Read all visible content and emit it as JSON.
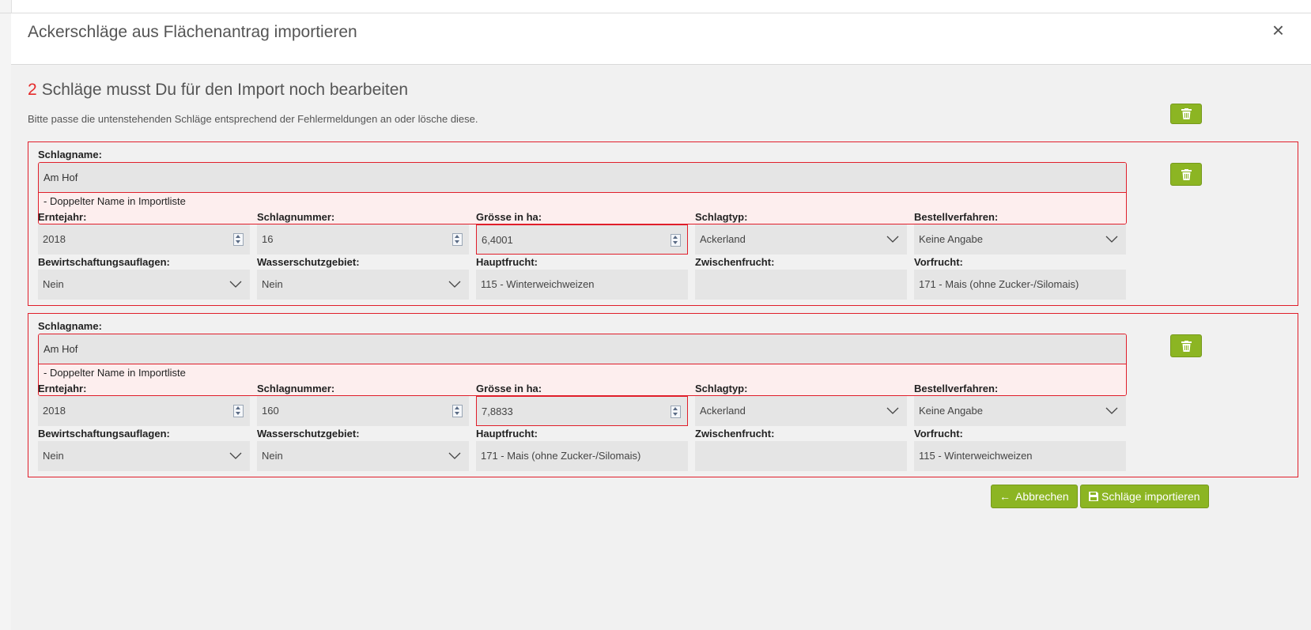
{
  "dialog": {
    "title": "Ackerschläge aus Flächenantrag importieren",
    "close_label": "×",
    "headline_count": "2",
    "headline_text": "Schläge musst Du für den Import noch bearbeiten",
    "subtext": "Bitte passe die untenstehenden Schläge entsprechend der Fehlermeldungen an oder lösche diese."
  },
  "labels": {
    "schlagname": "Schlagname:",
    "erntejahr": "Erntejahr:",
    "schlagnummer": "Schlagnummer:",
    "groesse": "Grösse in ha:",
    "schlagtyp": "Schlagtyp:",
    "bestellverfahren": "Bestellverfahren:",
    "bewirtschaftungsauflagen": "Bewirtschaftungsauflagen:",
    "wasserschutzgebiet": "Wasserschutzgebiet:",
    "hauptfrucht": "Hauptfrucht:",
    "zwischenfrucht": "Zwischenfrucht:",
    "vorfrucht": "Vorfrucht:"
  },
  "cards": [
    {
      "schlagname": "Am Hof",
      "error": "- Doppelter Name in Importliste",
      "erntejahr": "2018",
      "schlagnummer": "16",
      "groesse": "6,4001",
      "schlagtyp": "Ackerland",
      "bestellverfahren": "Keine Angabe",
      "bewirtschaftungsauflagen": "Nein",
      "wasserschutzgebiet": "Nein",
      "hauptfrucht": "115 - Winterweichweizen",
      "zwischenfrucht": "",
      "vorfrucht": "171 - Mais (ohne Zucker-/Silomais)"
    },
    {
      "schlagname": "Am Hof",
      "error": "- Doppelter Name in Importliste",
      "erntejahr": "2018",
      "schlagnummer": "160",
      "groesse": "7,8833",
      "schlagtyp": "Ackerland",
      "bestellverfahren": "Keine Angabe",
      "bewirtschaftungsauflagen": "Nein",
      "wasserschutzgebiet": "Nein",
      "hauptfrucht": "171 - Mais (ohne Zucker-/Silomais)",
      "zwischenfrucht": "",
      "vorfrucht": "115 - Winterweichweizen"
    }
  ],
  "buttons": {
    "cancel": "Abbrechen",
    "import": "Schläge importieren"
  },
  "icons": {
    "delete": "trash-icon",
    "back": "arrow-left-icon",
    "save": "floppy-disk-icon"
  },
  "colors": {
    "accent": "#8cb523",
    "error": "#e01e2a"
  }
}
